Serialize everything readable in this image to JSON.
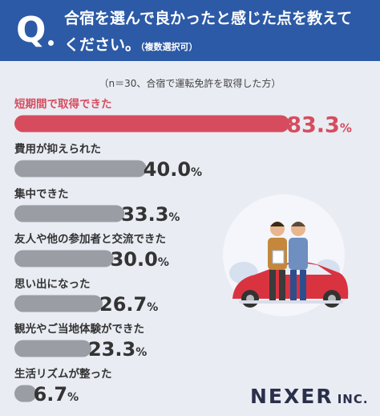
{
  "header": {
    "q_mark": "Q",
    "line1": "合宿を選んで良かったと感じた点を教えて",
    "line2": "ください。",
    "note": "（複数選択可）"
  },
  "sample_note": "（n＝30、合宿で運転免許を取得した方）",
  "brand": {
    "name": "NEXER",
    "suffix": "INC."
  },
  "colors": {
    "header": "#2c5aa6",
    "top_bar": "#d64c5e",
    "bar": "#9a9da3",
    "background": "#e9ecf3"
  },
  "chart_data": {
    "type": "bar",
    "orientation": "horizontal",
    "unit": "%",
    "xlim": [
      0,
      100
    ],
    "grid": false,
    "categories": [
      "短期間で取得できた",
      "費用が抑えられた",
      "集中できた",
      "友人や他の参加者と交流できた",
      "思い出になった",
      "観光やご当地体験ができた",
      "生活リズムが整った"
    ],
    "values": [
      83.3,
      40.0,
      33.3,
      30.0,
      26.7,
      23.3,
      6.7
    ]
  }
}
